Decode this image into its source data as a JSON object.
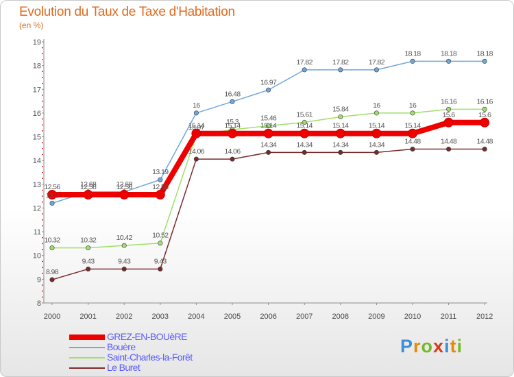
{
  "title": "Evolution du Taux de Taxe d'Habitation",
  "unit": "(en %)",
  "logo": {
    "letters": [
      "P",
      "r",
      "o",
      "x",
      "i",
      "t",
      "i"
    ],
    "colors": [
      "#3a8fd8",
      "#e68a00",
      "#76b82a",
      "#d63a1a",
      "#3a8fd8",
      "#e68a00",
      "#76b82a"
    ]
  },
  "chart_data": {
    "type": "line",
    "title": "Evolution du Taux de Taxe d'Habitation",
    "ylabel": "(en %)",
    "xlabel": "",
    "x": [
      "2000",
      "2001",
      "2002",
      "2003",
      "2004",
      "2005",
      "2006",
      "2007",
      "2008",
      "2009",
      "2010",
      "2011",
      "2012"
    ],
    "ylim": [
      8,
      19
    ],
    "yticks": [
      "8",
      "9",
      "10",
      "11",
      "12",
      "13",
      "14",
      "15",
      "16",
      "17",
      "18",
      "19"
    ],
    "grid": false,
    "series": [
      {
        "name": "GREZ-EN-BOUèRE",
        "color": "#ee0000",
        "values": [
          12.56,
          12.56,
          12.56,
          12.56,
          15.14,
          15.14,
          15.14,
          15.14,
          15.14,
          15.14,
          15.14,
          15.6,
          15.6
        ],
        "labels": [
          "12.56",
          "12.56",
          "12.56",
          "12.56",
          "15.14",
          "15.14",
          "15.14",
          "15.14",
          "15.14",
          "15.14",
          "15.14",
          "15.6",
          "15.6"
        ]
      },
      {
        "name": "Bouère",
        "color": "#6fa8dc",
        "values": [
          12.2,
          12.68,
          12.68,
          13.19,
          16,
          16.48,
          16.97,
          17.82,
          17.82,
          17.82,
          18.18,
          18.18,
          18.18
        ],
        "labels": [
          "12.2",
          "12.68",
          "12.68",
          "13.19",
          "16",
          "16.48",
          "16.97",
          "17.82",
          "17.82",
          "17.82",
          "18.18",
          "18.18",
          "18.18"
        ]
      },
      {
        "name": "Saint-Charles-la-Forêt",
        "color": "#9ee06b",
        "values": [
          10.32,
          10.32,
          10.42,
          10.52,
          15.07,
          15.3,
          15.46,
          15.61,
          15.84,
          16,
          16,
          16.16,
          16.16
        ],
        "labels": [
          "10.32",
          "10.32",
          "10.42",
          "10.52",
          "15.07",
          "15.3",
          "15.46",
          "15.61",
          "15.84",
          "16",
          "16",
          "16.16",
          "16.16"
        ]
      },
      {
        "name": "Le Buret",
        "color": "#7a2a2a",
        "values": [
          8.98,
          9.43,
          9.43,
          9.43,
          14.06,
          14.06,
          14.34,
          14.34,
          14.34,
          14.34,
          14.48,
          14.48,
          14.48
        ],
        "labels": [
          "8.98",
          "9.43",
          "9.43",
          "9.43",
          "14.06",
          "14.06",
          "14.34",
          "14.34",
          "14.34",
          "14.34",
          "14.48",
          "14.48",
          "14.48"
        ]
      }
    ]
  }
}
